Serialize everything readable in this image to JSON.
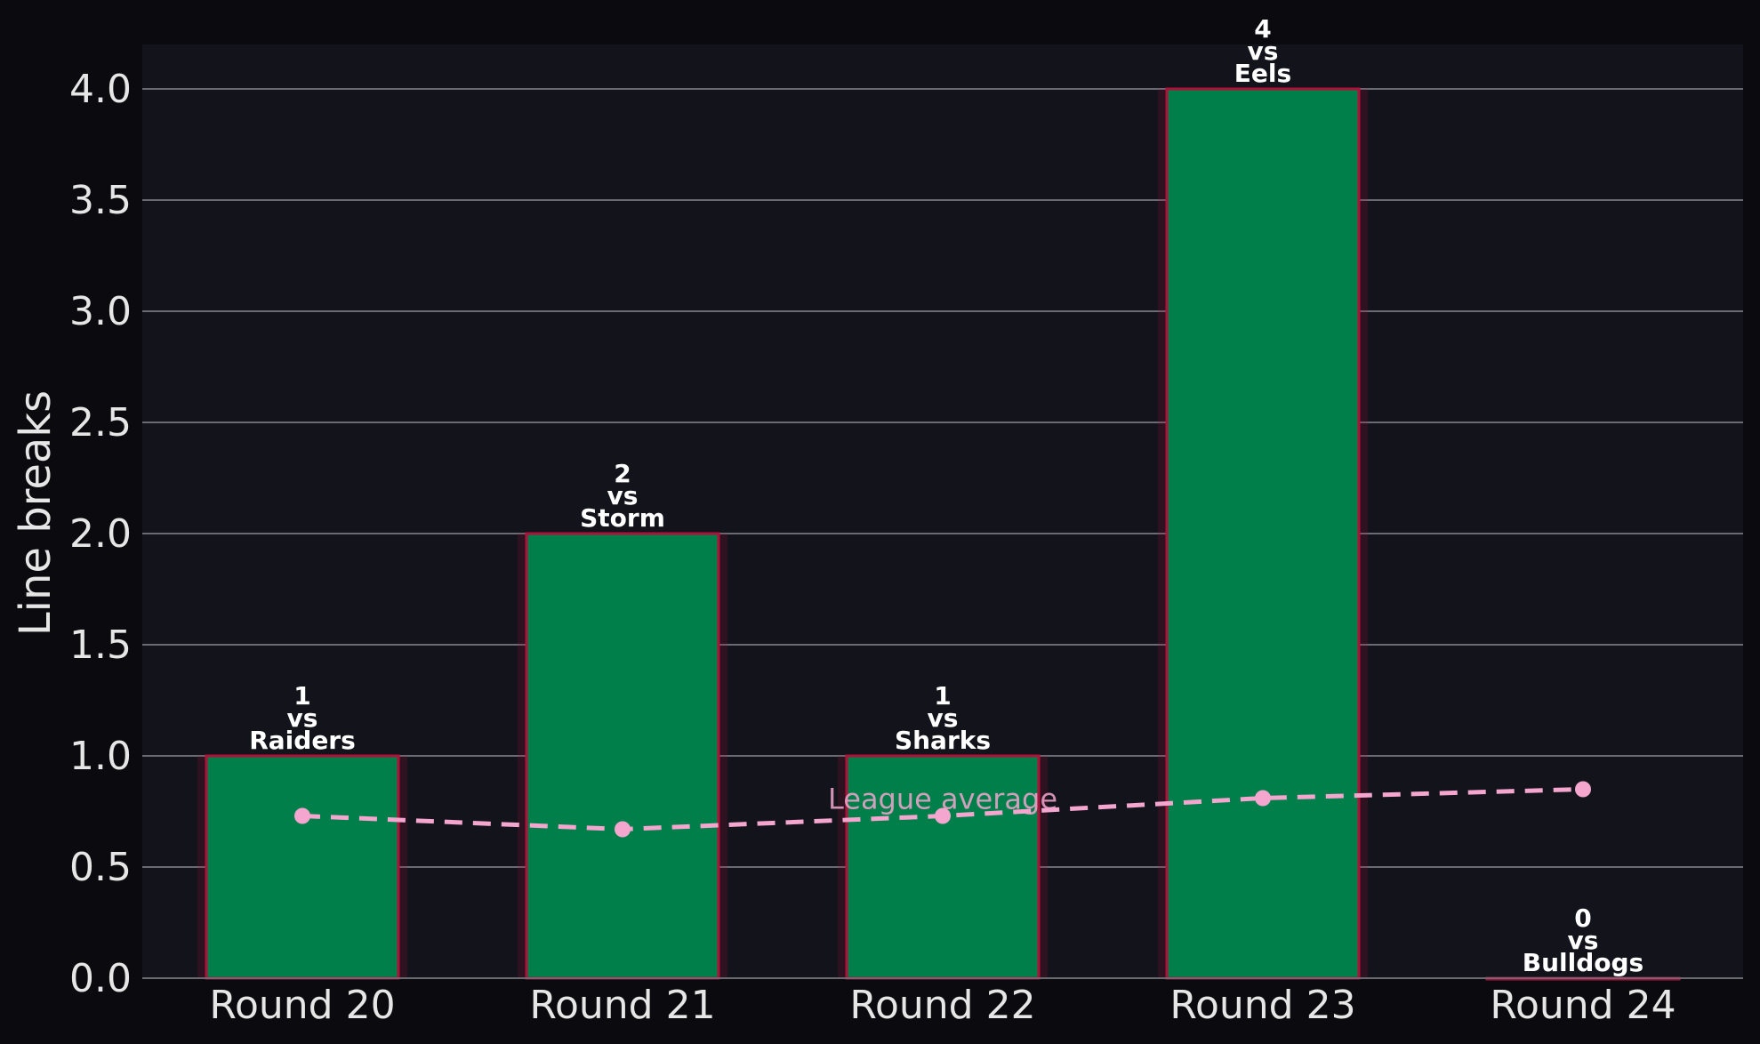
{
  "chart_data": {
    "type": "bar",
    "ylabel": "Line breaks",
    "xlabel": "",
    "ylim": [
      0,
      4.2
    ],
    "yticks": [
      0.0,
      0.5,
      1.0,
      1.5,
      2.0,
      2.5,
      3.0,
      3.5,
      4.0
    ],
    "grid": "horizontal",
    "categories": [
      "Round 20",
      "Round 21",
      "Round 22",
      "Round 23",
      "Round 24"
    ],
    "series": [
      {
        "values": [
          1,
          2,
          1,
          4,
          0
        ]
      },
      {
        "name": "League average",
        "type": "line",
        "values": [
          0.73,
          0.67,
          0.73,
          0.81,
          0.85
        ]
      }
    ],
    "opponents": [
      "Raiders",
      "Storm",
      "Sharks",
      "Eels",
      "Bulldogs"
    ],
    "vs_text": "vs",
    "colors": {
      "background": "#0b0b0f",
      "plot_background": "#13131b",
      "bar_fill": "#007f4b",
      "bar_edge": "#b0113a",
      "average_line": "#f4a6cf",
      "grid": "#6a6a72"
    }
  }
}
